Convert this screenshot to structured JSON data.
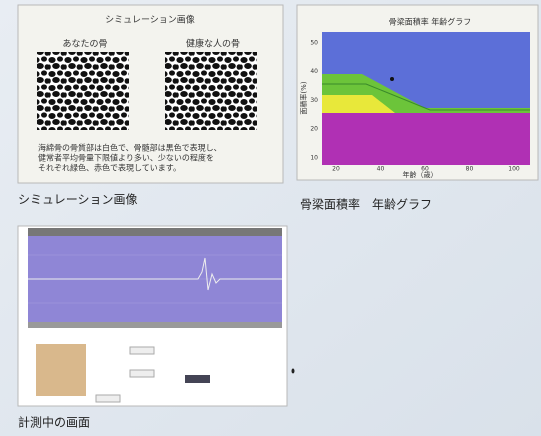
{
  "panel1": {
    "title": "シミュレーション画像",
    "left_label": "あなたの骨",
    "right_label": "健康な人の骨",
    "description": [
      "海綿骨の骨質部は白色で、骨髄部は黒色で表現し、",
      "健常者平均骨量下限値より多い、少ないの程度を",
      "それぞれ緑色、赤色で表現しています。"
    ]
  },
  "panel2": {
    "title": "骨梁面積率 年齢グラフ",
    "y_label": "面積率(%)",
    "x_label": "年齢（歳）",
    "yticks": [
      50,
      40,
      30,
      20,
      10
    ],
    "xticks": [
      20,
      40,
      60,
      80,
      100
    ]
  },
  "captions": [
    "シミュレーション画像",
    "骨梁面積率　年齢グラフ",
    "計測中の画面"
  ]
}
